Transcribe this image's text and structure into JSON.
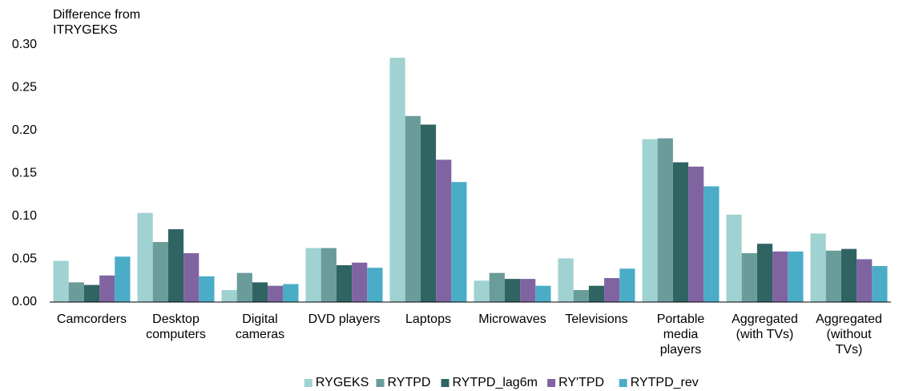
{
  "chart_data": {
    "type": "bar",
    "y_label": "Difference from\nITRYGEKS",
    "categories": [
      "Camcorders",
      "Desktop\ncomputers",
      "Digital\ncameras",
      "DVD players",
      "Laptops",
      "Microwaves",
      "Televisions",
      "Portable\nmedia\nplayers",
      "Aggregated\n(with TVs)",
      "Aggregated\n(without\nTVs)"
    ],
    "series": [
      {
        "name": "RYGEKS",
        "color": "#9fd2d0",
        "values": [
          0.048,
          0.104,
          0.014,
          0.063,
          0.285,
          0.025,
          0.051,
          0.19,
          0.102,
          0.08
        ]
      },
      {
        "name": "RYTPD",
        "color": "#6a9c99",
        "values": [
          0.023,
          0.07,
          0.034,
          0.063,
          0.217,
          0.034,
          0.014,
          0.191,
          0.057,
          0.06
        ]
      },
      {
        "name": "RYTPD_lag6m",
        "color": "#2f6462",
        "values": [
          0.02,
          0.085,
          0.023,
          0.043,
          0.207,
          0.027,
          0.019,
          0.163,
          0.068,
          0.062
        ]
      },
      {
        "name": "RY'TPD",
        "color": "#8064a2",
        "values": [
          0.031,
          0.057,
          0.019,
          0.046,
          0.166,
          0.027,
          0.028,
          0.158,
          0.059,
          0.05
        ]
      },
      {
        "name": "RYTPD_rev",
        "color": "#4aacc6",
        "values": [
          0.053,
          0.03,
          0.021,
          0.04,
          0.14,
          0.019,
          0.039,
          0.135,
          0.059,
          0.042
        ]
      }
    ],
    "ylim": [
      0,
      0.3
    ],
    "yticks": [
      {
        "value": 0,
        "label": "0.00"
      },
      {
        "value": 0.05,
        "label": "0.05"
      },
      {
        "value": 0.1,
        "label": "0.10"
      },
      {
        "value": 0.15,
        "label": "0.15"
      },
      {
        "value": 0.2,
        "label": "0.20"
      },
      {
        "value": 0.25,
        "label": "0.25"
      },
      {
        "value": 0.3,
        "label": "0.30"
      }
    ],
    "grid": false,
    "legend": "bottom"
  }
}
